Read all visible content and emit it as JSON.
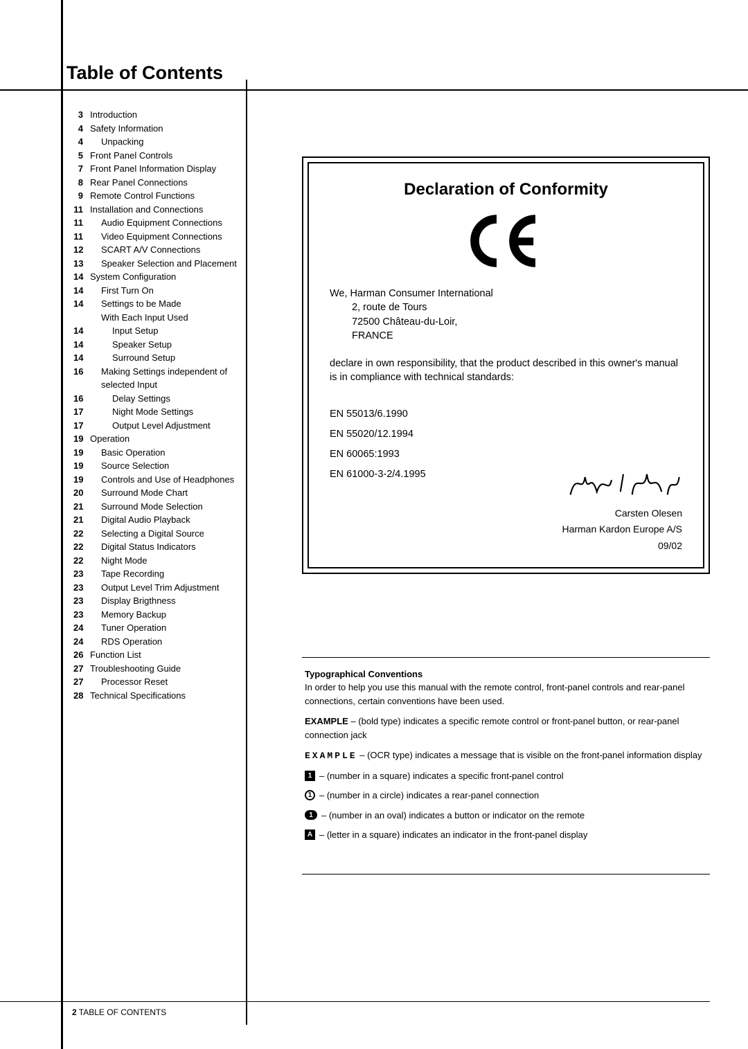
{
  "title": "Table of Contents",
  "toc": [
    {
      "page": "3",
      "text": "Introduction",
      "indent": 0
    },
    {
      "page": "4",
      "text": "Safety Information",
      "indent": 0
    },
    {
      "page": "4",
      "text": "Unpacking",
      "indent": 1
    },
    {
      "page": "5",
      "text": "Front Panel Controls",
      "indent": 0
    },
    {
      "page": "7",
      "text": "Front Panel Information Display",
      "indent": 0
    },
    {
      "page": "8",
      "text": "Rear Panel Connections",
      "indent": 0
    },
    {
      "page": "9",
      "text": "Remote Control Functions",
      "indent": 0
    },
    {
      "page": "11",
      "text": "Installation and Connections",
      "indent": 0
    },
    {
      "page": "11",
      "text": "Audio Equipment Connections",
      "indent": 1
    },
    {
      "page": "11",
      "text": "Video Equipment Connections",
      "indent": 1
    },
    {
      "page": "12",
      "text": "SCART A/V Connections",
      "indent": 1
    },
    {
      "page": "13",
      "text": "Speaker Selection and Placement",
      "indent": 1
    },
    {
      "page": "14",
      "text": "System Configuration",
      "indent": 0
    },
    {
      "page": "14",
      "text": "First Turn On",
      "indent": 1
    },
    {
      "page": "14",
      "text": "Settings to be Made",
      "indent": 1
    },
    {
      "page": "",
      "text": "With Each Input Used",
      "indent": 1
    },
    {
      "page": "14",
      "text": "Input Setup",
      "indent": 2
    },
    {
      "page": "14",
      "text": "Speaker Setup",
      "indent": 2
    },
    {
      "page": "14",
      "text": "Surround Setup",
      "indent": 2
    },
    {
      "page": "16",
      "text": "Making Settings independent of",
      "indent": 1
    },
    {
      "page": "",
      "text": "selected Input",
      "indent": 1
    },
    {
      "page": "16",
      "text": "Delay Settings",
      "indent": 2
    },
    {
      "page": "17",
      "text": "Night Mode Settings",
      "indent": 2
    },
    {
      "page": "17",
      "text": "Output Level Adjustment",
      "indent": 2
    },
    {
      "page": "19",
      "text": "Operation",
      "indent": 0
    },
    {
      "page": "19",
      "text": "Basic Operation",
      "indent": 1
    },
    {
      "page": "19",
      "text": "Source Selection",
      "indent": 1
    },
    {
      "page": "19",
      "text": "Controls and Use of Headphones",
      "indent": 1
    },
    {
      "page": "20",
      "text": "Surround Mode Chart",
      "indent": 1
    },
    {
      "page": "21",
      "text": "Surround Mode Selection",
      "indent": 1
    },
    {
      "page": "21",
      "text": "Digital Audio Playback",
      "indent": 1
    },
    {
      "page": "22",
      "text": "Selecting a Digital Source",
      "indent": 1
    },
    {
      "page": "22",
      "text": "Digital Status Indicators",
      "indent": 1
    },
    {
      "page": "22",
      "text": "Night Mode",
      "indent": 1
    },
    {
      "page": "23",
      "text": "Tape Recording",
      "indent": 1
    },
    {
      "page": "23",
      "text": "Output Level Trim Adjustment",
      "indent": 1
    },
    {
      "page": "23",
      "text": "Display Brigthness",
      "indent": 1
    },
    {
      "page": "23",
      "text": "Memory Backup",
      "indent": 1
    },
    {
      "page": "24",
      "text": "Tuner Operation",
      "indent": 1
    },
    {
      "page": "24",
      "text": "RDS Operation",
      "indent": 1
    },
    {
      "page": "26",
      "text": "Function List",
      "indent": 0
    },
    {
      "page": "27",
      "text": "Troubleshooting Guide",
      "indent": 0
    },
    {
      "page": "27",
      "text": "Processor Reset",
      "indent": 1
    },
    {
      "page": "28",
      "text": "Technical Specifications",
      "indent": 0
    }
  ],
  "declaration": {
    "title": "Declaration of Conformity",
    "we": "We, Harman Consumer International",
    "addr1": "2, route de Tours",
    "addr2": "72500 Château-du-Loir,",
    "addr3": "FRANCE",
    "statement": "declare in own responsibility, that the product described in this owner's manual is in compliance with technical standards:",
    "standards": [
      "EN 55013/6.1990",
      "EN 55020/12.1994",
      "EN 60065:1993",
      "EN 61000-3-2/4.1995"
    ],
    "signatory": "Carsten Olesen",
    "company": "Harman Kardon Europe A/S",
    "date": "09/02"
  },
  "conventions": {
    "title": "Typographical Conventions",
    "intro": "In order to help you use this manual with the remote control, front-panel controls and rear-panel connections, certain conventions have been used.",
    "example_bold_label": "EXAMPLE",
    "example_bold_text": " – (bold type) indicates a specific remote control or front-panel button, or rear-panel connection jack",
    "example_ocr_label": "EXAMPLE",
    "example_ocr_text": " – (OCR type) indicates a message that is visible on the front-panel information display",
    "sym_square_num": "1",
    "sym_square_text": "–  (number in a square) indicates a specific front-panel control",
    "sym_circle_num": "1",
    "sym_circle_text": "–  (number in a circle) indicates a rear-panel connection",
    "sym_oval_num": "1",
    "sym_oval_text": "– (number in an oval) indicates a button or indicator on the remote",
    "sym_letter": "A",
    "sym_letter_text": "–  (letter in a square) indicates an indicator in the front-panel display"
  },
  "footer": {
    "page_num": "2",
    "section": " TABLE OF CONTENTS"
  }
}
